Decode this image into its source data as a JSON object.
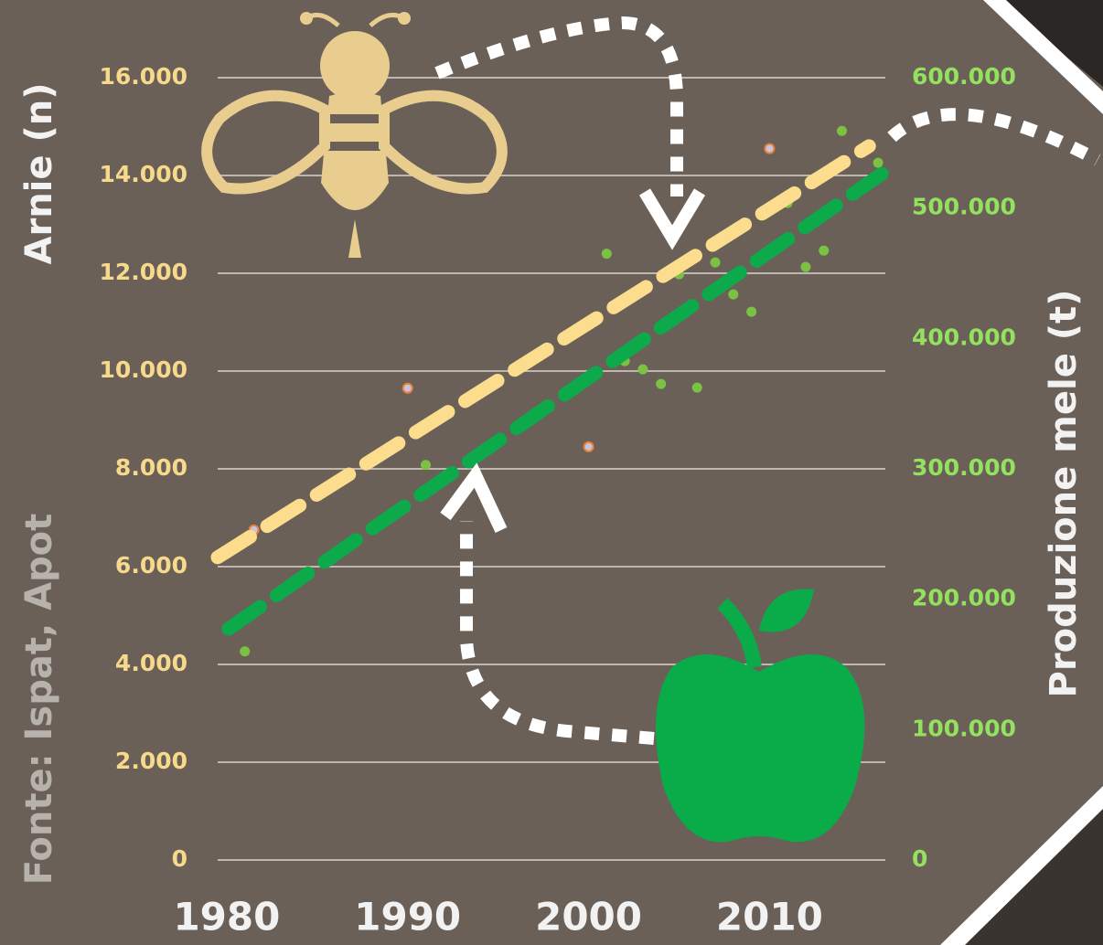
{
  "chart_data": {
    "type": "scatter",
    "xlim": [
      1979.5,
      2016.4
    ],
    "xticks": [
      1980,
      1990,
      2000,
      2010
    ],
    "ylim": [
      0,
      16000
    ],
    "yticks": [
      0,
      {
        "value": 2000,
        "label": "2.000"
      },
      {
        "value": 4000,
        "label": "4.000"
      },
      {
        "value": 6000,
        "label": "6.000"
      },
      {
        "value": 8000,
        "label": "8.000"
      },
      {
        "value": 10000,
        "label": "10.000"
      },
      {
        "value": 12000,
        "label": "12.000"
      },
      {
        "value": 14000,
        "label": "14.000"
      },
      {
        "value": 16000,
        "label": "16.000"
      }
    ],
    "y2lim": [
      0,
      600000
    ],
    "y2ticks": [
      0,
      {
        "value": 100000,
        "label": "100.000"
      },
      {
        "value": 200000,
        "label": "200.000"
      },
      {
        "value": 300000,
        "label": "300.000"
      },
      {
        "value": 400000,
        "label": "400.000"
      },
      {
        "value": 500000,
        "label": "500.000"
      },
      {
        "value": 600000,
        "label": "600.000"
      }
    ],
    "ylabel": "Arnie (n)",
    "y2label": "Produzione mele (t)",
    "source": "Fonte: Ispat, Apot",
    "grid": true,
    "ycolor": "#f7d98c",
    "y2color": "#93e15e",
    "series": [
      {
        "color": "#e8833a",
        "x": [
          1981.5,
          1990,
          2000,
          2010
        ],
        "values": [
          6750,
          9650,
          8450,
          14550
        ]
      },
      {
        "color": "#7cc242",
        "axis": "y2",
        "x": [
          1981,
          1991,
          2001,
          2002,
          2003,
          2004,
          2005,
          2006,
          2007,
          2008,
          2009,
          2011,
          2012,
          2013,
          2014,
          2016
        ],
        "values": [
          160000,
          303000,
          465000,
          382600,
          376300,
          365100,
          449200,
          362300,
          458300,
          433800,
          420500,
          503900,
          454800,
          467400,
          559200,
          534700
        ]
      },
      {
        "type": "line",
        "color": "#fbdd8d",
        "x": [
          1979.5,
          2015.5
        ],
        "values": [
          6190,
          14600
        ]
      },
      {
        "type": "line",
        "color": "#0caa4a",
        "axis": "y2",
        "x": [
          1980.1,
          2016.2
        ],
        "values": [
          177300,
          526300
        ]
      }
    ]
  }
}
